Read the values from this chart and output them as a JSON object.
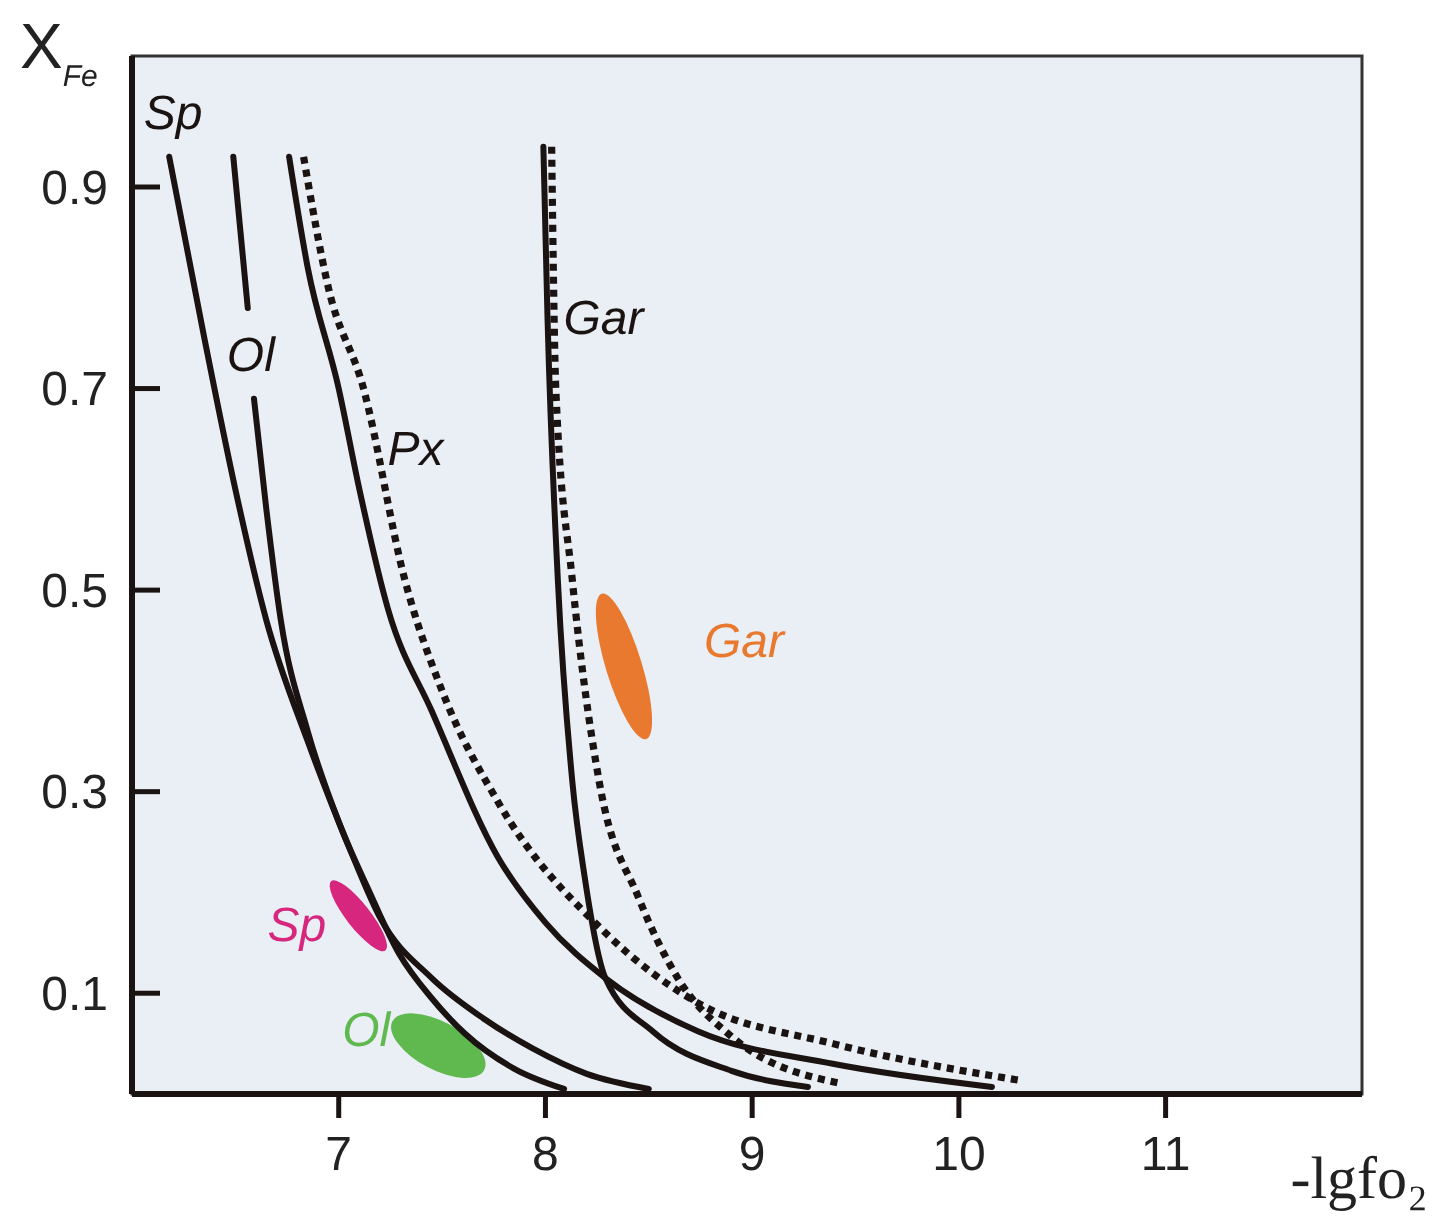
{
  "chart_data": {
    "type": "line",
    "xlabel": "-lgfo₂",
    "ylabel": "X$_{Fe}$",
    "xlim": [
      6,
      11.95
    ],
    "ylim": [
      0,
      1.03
    ],
    "xticks": [
      7,
      8,
      9,
      10,
      11
    ],
    "yticks": [
      0.1,
      0.3,
      0.5,
      0.7,
      0.9
    ],
    "grid": false,
    "annotations": [
      "Gar",
      "Sp",
      "Ol"
    ],
    "series": [
      {
        "name": "Sp",
        "color": "#1a1311",
        "x": [
          6.18,
          6.35,
          6.5,
          6.65,
          6.85,
          7.0,
          7.07,
          7.2,
          7.45,
          7.7,
          7.94,
          8.2,
          8.5
        ],
        "values": [
          0.93,
          0.75,
          0.6,
          0.47,
          0.35,
          0.27,
          0.235,
          0.175,
          0.115,
          0.075,
          0.045,
          0.02,
          0.005
        ]
      },
      {
        "name": "Ol",
        "color": "#1a1311",
        "x": [
          6.49,
          6.56,
          6.57,
          6.59,
          6.65,
          6.72,
          6.85,
          7.0,
          7.15,
          7.29,
          7.45,
          7.61,
          7.85,
          8.09
        ],
        "values": [
          0.93,
          0.78,
          null,
          0.69,
          0.58,
          0.47,
          0.36,
          0.27,
          0.2,
          0.14,
          0.095,
          0.06,
          0.025,
          0.005
        ]
      },
      {
        "name": "Px",
        "color": "#1a1311",
        "x": [
          6.76,
          6.85,
          7.0,
          7.1,
          7.24,
          7.45,
          7.77,
          8.0,
          8.29,
          8.74,
          9.39,
          10.16
        ],
        "values": [
          0.93,
          0.82,
          0.7,
          0.6,
          0.48,
          0.38,
          0.235,
          0.17,
          0.115,
          0.062,
          0.03,
          0.007
        ]
      },
      {
        "color": "#1a1311",
        "line_style": "dotted",
        "x": [
          6.83,
          6.95,
          7.12,
          7.32,
          7.5,
          7.77,
          8.29,
          8.74,
          9.39,
          10.31
        ],
        "values": [
          0.93,
          0.8,
          0.7,
          0.51,
          0.4,
          0.29,
          0.16,
          0.09,
          0.05,
          0.013
        ]
      },
      {
        "name": "Gar",
        "color": "#1a1311",
        "x": [
          7.99,
          8.01,
          8.06,
          8.13,
          8.19,
          8.29,
          8.52,
          8.9,
          9.27
        ],
        "values": [
          0.94,
          0.77,
          0.51,
          0.31,
          0.215,
          0.115,
          0.062,
          0.023,
          0.007
        ]
      },
      {
        "color": "#1a1311",
        "line_style": "dotted",
        "x": [
          8.03,
          8.05,
          8.13,
          8.26,
          8.45,
          8.64,
          8.9,
          9.44
        ],
        "values": [
          0.94,
          0.7,
          0.51,
          0.31,
          0.195,
          0.115,
          0.057,
          0.01
        ]
      }
    ]
  }
}
